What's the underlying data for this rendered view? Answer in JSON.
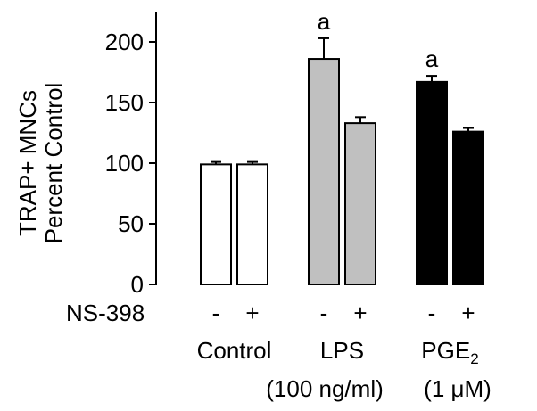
{
  "chart_data": {
    "type": "bar",
    "ylabel_lines": [
      "TRAP+ MNCs",
      "Percent Control"
    ],
    "ylim": [
      0,
      200
    ],
    "yticks": [
      0,
      50,
      100,
      150,
      200
    ],
    "treatment_row_label": "NS-398",
    "groups": [
      {
        "name": "Control",
        "sublabel": "",
        "color": "#ffffff",
        "bars": [
          {
            "treatment": "-",
            "value": 99,
            "error": 2,
            "annotation": ""
          },
          {
            "treatment": "+",
            "value": 99,
            "error": 2,
            "annotation": ""
          }
        ]
      },
      {
        "name": "LPS",
        "sublabel": "(100 ng/ml)",
        "color": "#c0c0c0",
        "bars": [
          {
            "treatment": "-",
            "value": 186,
            "error": 17,
            "annotation": "a"
          },
          {
            "treatment": "+",
            "value": 133,
            "error": 5,
            "annotation": ""
          }
        ]
      },
      {
        "name": "PGE",
        "name_subscript": "2",
        "sublabel": "(1 μM)",
        "color": "#000000",
        "bars": [
          {
            "treatment": "-",
            "value": 167,
            "error": 5,
            "annotation": "a"
          },
          {
            "treatment": "+",
            "value": 126,
            "error": 3,
            "annotation": ""
          }
        ]
      }
    ]
  }
}
